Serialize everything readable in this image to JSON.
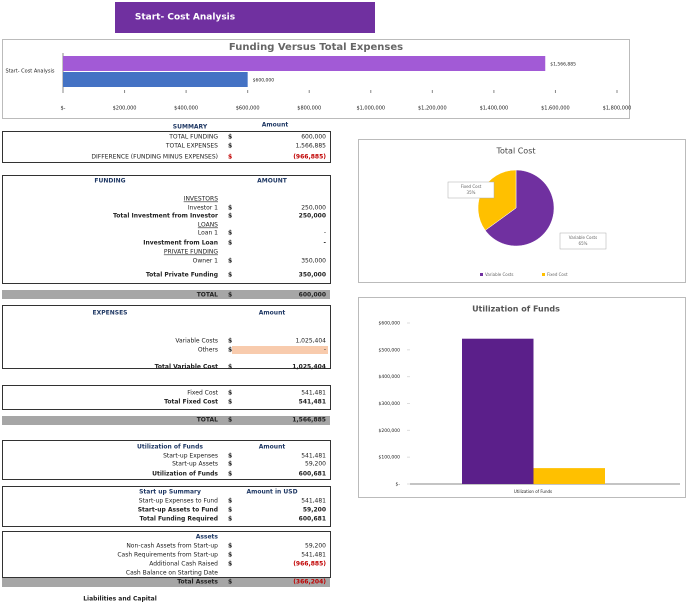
{
  "header": {
    "title": "Start- Cost Analysis"
  },
  "funding_chart": {
    "type": "hbar",
    "title": "Funding Versus Total Expenses",
    "category": "Start- Cost Analysis",
    "series": [
      {
        "color": "#a25ad6",
        "values": [
          1566885
        ],
        "value_labels": [
          "$1,566,885"
        ]
      },
      {
        "color": "#4472c4",
        "values": [
          600000
        ],
        "value_labels": [
          "$600,000"
        ]
      }
    ],
    "xlim": [
      0,
      1800000
    ],
    "xticks": [
      {
        "value": 0,
        "label": "$-"
      },
      {
        "value": 200000,
        "label": "$200,000"
      },
      {
        "value": 400000,
        "label": "$400,000"
      },
      {
        "value": 600000,
        "label": "$600,000"
      },
      {
        "value": 800000,
        "label": "$800,000"
      },
      {
        "value": 1000000,
        "label": "$1,000,000"
      },
      {
        "value": 1200000,
        "label": "$1,200,000"
      },
      {
        "value": 1400000,
        "label": "$1,400,000"
      },
      {
        "value": 1600000,
        "label": "$1,600,000"
      },
      {
        "value": 1800000,
        "label": "$1,800,000"
      }
    ]
  },
  "cost_chart": {
    "type": "pie",
    "title": "Total Cost",
    "labels": [
      "Variable Costs",
      "Fixed Cost"
    ],
    "values": [
      65,
      35
    ],
    "value_labels": [
      "65%",
      "35%"
    ],
    "colors": [
      "#7030a0",
      "#ffc000"
    ]
  },
  "util_chart": {
    "type": "bar",
    "title": "Utilization of Funds",
    "categories": [
      "Utilization of Funds"
    ],
    "series": [
      {
        "color": "#5b1f8a",
        "values": [
          541481
        ]
      },
      {
        "color": "#ffc000",
        "values": [
          59200
        ]
      }
    ],
    "ylim": [
      0,
      600000
    ],
    "yticks": [
      {
        "value": 0,
        "label": "$-"
      },
      {
        "value": 100000,
        "label": "$100,000"
      },
      {
        "value": 200000,
        "label": "$200,000"
      },
      {
        "value": 300000,
        "label": "$300,000"
      },
      {
        "value": 400000,
        "label": "$400,000"
      },
      {
        "value": 500000,
        "label": "$500,000"
      },
      {
        "value": 600000,
        "label": "$600,000"
      }
    ]
  },
  "summary": {
    "title": "SUMMARY",
    "amount_header": "Amount",
    "rows": [
      {
        "label": "TOTAL FUNDING",
        "currency": "$",
        "amount": "600,000"
      },
      {
        "label": "TOTAL EXPENSES",
        "currency": "$",
        "amount": "1,566,885"
      },
      {
        "label": "DIFFERENCE (FUNDING MINUS EXPENSES)",
        "currency": "$",
        "amount": "(966,885)"
      }
    ]
  },
  "funding": {
    "title": "FUNDING",
    "amount_header": "AMOUNT",
    "rows": [
      {
        "label": "INVESTORS"
      },
      {
        "label": "Investor 1",
        "currency": "$",
        "amount": "250,000"
      },
      {
        "label": "Total Investment from Investor",
        "currency": "$",
        "amount": "250,000"
      },
      {
        "label": "LOANS"
      },
      {
        "label": "Loan 1",
        "currency": "$",
        "amount": "-"
      },
      {
        "label": "Investment from Loan",
        "currency": "$",
        "amount": "-"
      },
      {
        "label": "PRIVATE FUNDING"
      },
      {
        "label": "Owner 1",
        "currency": "$",
        "amount": "350,000"
      },
      {
        "label": "Total Private Funding",
        "currency": "$",
        "amount": "350,000"
      },
      {
        "label": "TOTAL",
        "currency": "$",
        "amount": "600,000"
      }
    ]
  },
  "expenses": {
    "title": "EXPENSES",
    "amount_header": "Amount",
    "rows": [
      {
        "label": "Variable Costs",
        "currency": "$",
        "amount": "1,025,404"
      },
      {
        "label": "Others",
        "currency": "$",
        "amount": "-"
      },
      {
        "label": "Total Variable Cost",
        "currency": "$",
        "amount": "1,025,404"
      },
      {
        "label": "Fixed Cost",
        "currency": "$",
        "amount": "541,481"
      },
      {
        "label": "Total Fixed Cost",
        "currency": "$",
        "amount": "541,481"
      },
      {
        "label": "TOTAL",
        "currency": "$",
        "amount": "1,566,885"
      }
    ]
  },
  "utilization": {
    "title": "Utilization of Funds",
    "amount_header": "Amount",
    "rows": [
      {
        "label": "Start-up Expenses",
        "currency": "$",
        "amount": "541,481"
      },
      {
        "label": "Start-up Assets",
        "currency": "$",
        "amount": "59,200"
      },
      {
        "label": "Utilization of Funds",
        "currency": "$",
        "amount": "600,681"
      }
    ]
  },
  "startup_summary": {
    "title": "Start up Summary",
    "amount_header": "Amount in USD",
    "rows": [
      {
        "label": "Start-up Expenses to Fund",
        "currency": "$",
        "amount": "541,481"
      },
      {
        "label": "Start-up Assets to Fund",
        "currency": "$",
        "amount": "59,200"
      },
      {
        "label": "Total Funding Required",
        "currency": "$",
        "amount": "600,681"
      }
    ]
  },
  "assets": {
    "title": "Assets",
    "rows": [
      {
        "label": "Non-cash Assets from Start-up",
        "currency": "$",
        "amount": "59,200"
      },
      {
        "label": "Cash Requirements from Start-up",
        "currency": "$",
        "amount": "541,481"
      },
      {
        "label": "Additional Cash Raised",
        "currency": "$",
        "amount": "(966,885)"
      },
      {
        "label": "Cash Balance on Starting Date"
      },
      {
        "label": "Total Assets",
        "currency": "$",
        "amount": "(366,204)"
      },
      {
        "label": "Liabilities and Capital"
      }
    ]
  }
}
